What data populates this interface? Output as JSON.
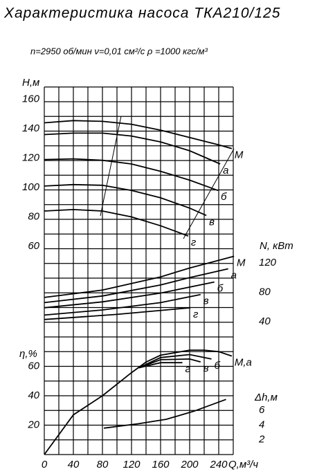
{
  "title": "Характеристика насоса ТКА210/125",
  "subtitle": "n=2950 об/мин   ν=0,01 см²/с   ρ =1000 кгс/м³",
  "x_label": "Q,м³/ч",
  "xlim": [
    0,
    260
  ],
  "xticks": [
    0,
    40,
    80,
    120,
    160,
    200,
    240
  ],
  "xgrid": [
    0,
    20,
    40,
    60,
    80,
    100,
    120,
    140,
    160,
    180,
    200,
    220,
    240,
    260
  ],
  "chart_data": [
    {
      "type": "line",
      "y_label": "Н,м",
      "ylim": [
        60,
        170
      ],
      "yticks": [
        60,
        80,
        100,
        120,
        140,
        160
      ],
      "axis_side": "left",
      "series": [
        {
          "name": "М",
          "x": [
            0,
            40,
            80,
            120,
            160,
            200,
            240,
            258
          ],
          "values": [
            144,
            145.5,
            145,
            143,
            139,
            134,
            129,
            126.5
          ]
        },
        {
          "name": "а",
          "x": [
            0,
            40,
            80,
            120,
            160,
            200,
            242
          ],
          "values": [
            136,
            137,
            137,
            135,
            131,
            125,
            116
          ]
        },
        {
          "name": "б",
          "x": [
            0,
            40,
            80,
            120,
            160,
            200,
            239
          ],
          "values": [
            119,
            119.5,
            118.5,
            116,
            111,
            105,
            98
          ]
        },
        {
          "name": "в",
          "x": [
            0,
            40,
            80,
            120,
            160,
            200,
            223
          ],
          "values": [
            101,
            102,
            101.5,
            98,
            93,
            86,
            81
          ]
        },
        {
          "name": "г",
          "x": [
            0,
            40,
            80,
            120,
            160,
            198
          ],
          "values": [
            84,
            85,
            84,
            80,
            74,
            67
          ]
        }
      ]
    },
    {
      "type": "line",
      "y_label": "N, кВт",
      "ylim": [
        0,
        140
      ],
      "yticks": [
        40,
        80,
        120
      ],
      "axis_side": "right",
      "series": [
        {
          "name": "М",
          "x": [
            0,
            80,
            160,
            200,
            261
          ],
          "values": [
            73,
            83,
            101,
            113,
            129
          ]
        },
        {
          "name": "а",
          "x": [
            0,
            80,
            160,
            200,
            253
          ],
          "values": [
            66,
            75,
            90,
            100,
            112
          ]
        },
        {
          "name": "б",
          "x": [
            0,
            80,
            160,
            234
          ],
          "values": [
            59,
            67,
            79,
            94
          ]
        },
        {
          "name": "в",
          "x": [
            0,
            80,
            160,
            215
          ],
          "values": [
            49,
            56,
            66,
            77
          ]
        },
        {
          "name": "г",
          "x": [
            0,
            100,
            201
          ],
          "values": [
            43,
            50,
            59
          ]
        }
      ]
    },
    {
      "type": "line",
      "y_label": "η,%",
      "ylim": [
        0,
        70
      ],
      "yticks": [
        20,
        40,
        60
      ],
      "axis_side": "left",
      "ygrid": [
        0,
        10,
        20,
        30,
        40,
        50,
        60,
        70,
        80,
        90,
        100,
        110,
        120,
        130,
        140,
        150,
        160,
        170,
        180,
        190,
        200,
        210,
        220,
        230,
        240,
        250
      ],
      "series": [
        {
          "name": "М,а",
          "x": [
            0,
            40,
            80,
            120,
            140,
            160,
            200,
            220,
            240,
            258
          ],
          "values": [
            0,
            27,
            40,
            55.7,
            62.9,
            67.6,
            71,
            71,
            70,
            67
          ]
        },
        {
          "name": "б",
          "x": [
            130,
            160,
            200,
            230
          ],
          "values": [
            59,
            66,
            68,
            65
          ]
        },
        {
          "name": "в",
          "x": [
            130,
            160,
            200,
            215
          ],
          "values": [
            59,
            64.5,
            65,
            63
          ]
        },
        {
          "name": "г",
          "x": [
            130,
            160,
            190
          ],
          "values": [
            59,
            62.5,
            62.5
          ]
        }
      ]
    },
    {
      "type": "line",
      "y_label": "Δh,м",
      "ylim": [
        0,
        10
      ],
      "yticks": [
        2,
        4,
        6
      ],
      "axis_side": "right",
      "series": [
        {
          "x": [
            82,
            130,
            168,
            206,
            250
          ],
          "values": [
            3.6,
            4.2,
            4.8,
            5.9,
            7.5
          ]
        }
      ]
    }
  ]
}
